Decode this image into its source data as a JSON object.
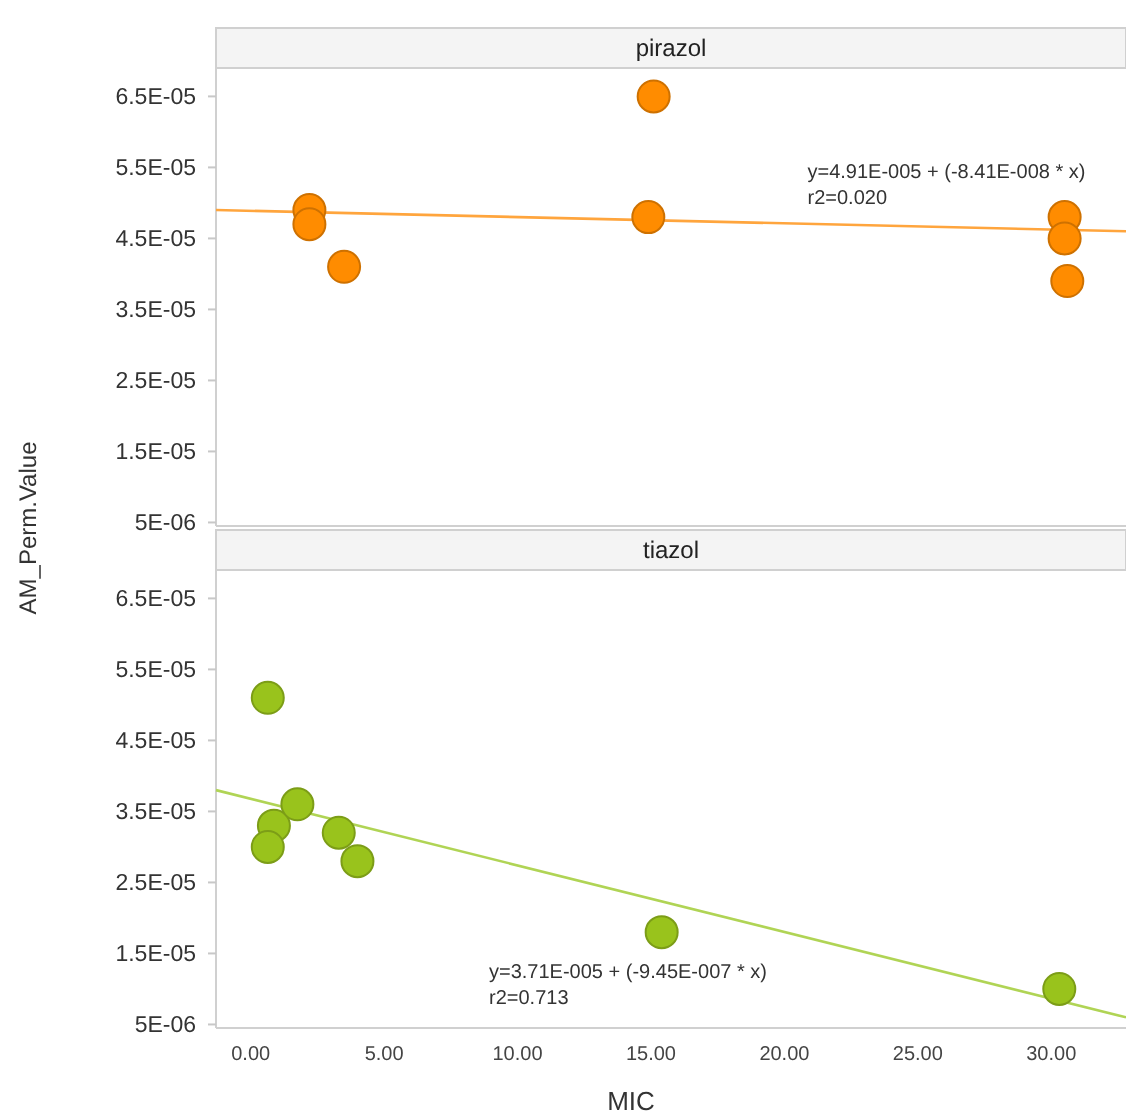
{
  "chart_data": [
    {
      "type": "scatter",
      "title": "pirazol",
      "ylabel": "AM_Perm.Value",
      "xlim": [
        -1.3,
        32.8
      ],
      "ylim": [
        4.5e-06,
        6.9e-05
      ],
      "yticks": [
        {
          "value": 5e-06,
          "label": "5E-06"
        },
        {
          "value": 1.5e-05,
          "label": "1.5E-05"
        },
        {
          "value": 2.5e-05,
          "label": "2.5E-05"
        },
        {
          "value": 3.5e-05,
          "label": "3.5E-05"
        },
        {
          "value": 4.5e-05,
          "label": "4.5E-05"
        },
        {
          "value": 5.5e-05,
          "label": "5.5E-05"
        },
        {
          "value": 6.5e-05,
          "label": "6.5E-05"
        }
      ],
      "tick_labels": "y",
      "series": [
        {
          "color": "#ff8c00",
          "marker": "circle",
          "x": [
            2.2,
            2.2,
            3.5,
            15.1,
            14.9,
            30.5,
            30.5,
            30.6
          ],
          "values": [
            4.9e-05,
            4.7e-05,
            4.1e-05,
            6.5e-05,
            4.8e-05,
            4.8e-05,
            4.5e-05,
            3.9e-05
          ]
        },
        {
          "type": "line",
          "color": "#ffa53d",
          "x": [
            -1.3,
            32.8
          ],
          "values": [
            4.9e-05,
            4.6e-05
          ]
        }
      ],
      "annotations": [
        "y=4.91E-005 + (-8.41E-008 * x)",
        "r2=0.020"
      ]
    },
    {
      "type": "scatter",
      "title": "tiazol",
      "xlabel": "MIC",
      "xlim": [
        -1.3,
        32.8
      ],
      "ylim": [
        4.5e-06,
        6.9e-05
      ],
      "xticks": [
        {
          "value": 0,
          "label": "0.00"
        },
        {
          "value": 5,
          "label": "5.00"
        },
        {
          "value": 10,
          "label": "10.00"
        },
        {
          "value": 15,
          "label": "15.00"
        },
        {
          "value": 20,
          "label": "20.00"
        },
        {
          "value": 25,
          "label": "25.00"
        },
        {
          "value": 30,
          "label": "30.00"
        }
      ],
      "yticks": [
        {
          "value": 5e-06,
          "label": "5E-06"
        },
        {
          "value": 1.5e-05,
          "label": "1.5E-05"
        },
        {
          "value": 2.5e-05,
          "label": "2.5E-05"
        },
        {
          "value": 3.5e-05,
          "label": "3.5E-05"
        },
        {
          "value": 4.5e-05,
          "label": "4.5E-05"
        },
        {
          "value": 5.5e-05,
          "label": "5.5E-05"
        },
        {
          "value": 6.5e-05,
          "label": "6.5E-05"
        }
      ],
      "series": [
        {
          "color": "#99c31c",
          "marker": "circle",
          "x": [
            0.64,
            0.87,
            0.64,
            1.75,
            3.3,
            4.0,
            15.4,
            30.3
          ],
          "values": [
            5.1e-05,
            3.3e-05,
            3e-05,
            3.6e-05,
            3.2e-05,
            2.8e-05,
            1.8e-05,
            1e-05
          ]
        },
        {
          "type": "line",
          "color": "#b0d455",
          "x": [
            -1.3,
            32.8
          ],
          "values": [
            3.8e-05,
            6e-06
          ]
        }
      ],
      "annotations": [
        "y=3.71E-005 + (-9.45E-007 * x)",
        "r2=0.713"
      ]
    }
  ]
}
